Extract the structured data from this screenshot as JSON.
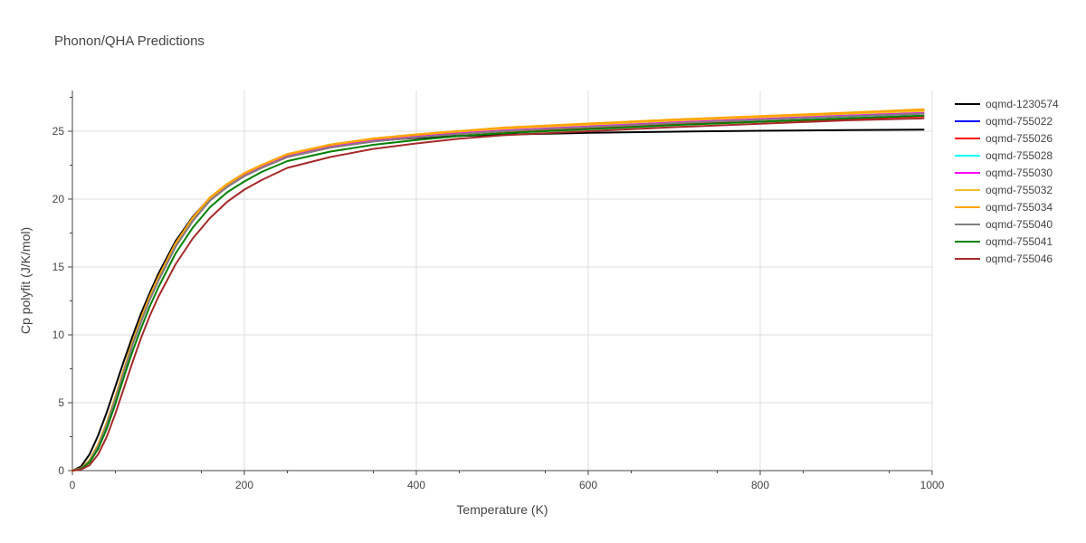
{
  "chart_data": {
    "type": "line",
    "title": "Phonon/QHA Predictions",
    "xlabel": "Temperature (K)",
    "ylabel": "Cp polyfit (J/K/mol)",
    "xlim": [
      0,
      1000
    ],
    "ylim": [
      0,
      28
    ],
    "x_ticks": [
      0,
      200,
      400,
      600,
      800,
      1000
    ],
    "y_ticks": [
      0,
      5,
      10,
      15,
      20,
      25
    ],
    "grid": true,
    "legend_position": "right",
    "x": [
      0,
      10,
      20,
      30,
      40,
      50,
      60,
      70,
      80,
      90,
      100,
      120,
      140,
      160,
      180,
      200,
      220,
      250,
      300,
      350,
      400,
      450,
      500,
      600,
      700,
      800,
      900,
      990
    ],
    "series": [
      {
        "name": "oqmd-1230574",
        "color": "#000000",
        "width": 2,
        "values": [
          0,
          0.3,
          1.2,
          2.6,
          4.3,
          6.2,
          8.1,
          9.9,
          11.6,
          13.1,
          14.5,
          16.9,
          18.7,
          20.1,
          21.1,
          21.9,
          22.5,
          23.2,
          23.9,
          24.3,
          24.5,
          24.65,
          24.75,
          24.88,
          24.97,
          25.03,
          25.08,
          25.12
        ]
      },
      {
        "name": "oqmd-755022",
        "color": "#0000ff",
        "width": 2,
        "values": [
          0,
          0.15,
          0.7,
          1.8,
          3.4,
          5.3,
          7.3,
          9.3,
          11.0,
          12.6,
          14.0,
          16.5,
          18.4,
          19.9,
          20.9,
          21.7,
          22.3,
          23.1,
          23.8,
          24.25,
          24.55,
          24.8,
          25.0,
          25.3,
          25.6,
          25.85,
          26.1,
          26.3
        ]
      },
      {
        "name": "oqmd-755026",
        "color": "#ff0000",
        "width": 2,
        "values": [
          0,
          0.15,
          0.7,
          1.8,
          3.4,
          5.3,
          7.3,
          9.3,
          11.0,
          12.6,
          14.0,
          16.5,
          18.4,
          19.9,
          20.9,
          21.7,
          22.3,
          23.1,
          23.8,
          24.25,
          24.55,
          24.8,
          24.98,
          25.25,
          25.5,
          25.7,
          25.9,
          26.1
        ]
      },
      {
        "name": "oqmd-755028",
        "color": "#00ffff",
        "width": 2,
        "values": [
          0,
          0.15,
          0.72,
          1.85,
          3.45,
          5.35,
          7.35,
          9.35,
          11.05,
          12.65,
          14.05,
          16.55,
          18.45,
          19.95,
          20.95,
          21.75,
          22.35,
          23.15,
          23.85,
          24.3,
          24.6,
          24.85,
          25.05,
          25.35,
          25.65,
          25.9,
          26.15,
          26.35
        ]
      },
      {
        "name": "oqmd-755030",
        "color": "#ff00ff",
        "width": 2,
        "values": [
          0,
          0.15,
          0.72,
          1.85,
          3.45,
          5.35,
          7.35,
          9.35,
          11.05,
          12.65,
          14.05,
          16.55,
          18.45,
          19.95,
          20.95,
          21.75,
          22.35,
          23.15,
          23.85,
          24.3,
          24.6,
          24.85,
          25.05,
          25.35,
          25.65,
          25.9,
          26.15,
          26.35
        ]
      },
      {
        "name": "oqmd-755032",
        "color": "#f0c030",
        "width": 2.5,
        "values": [
          0,
          0.15,
          0.75,
          1.9,
          3.5,
          5.4,
          7.45,
          9.45,
          11.2,
          12.8,
          14.2,
          16.7,
          18.6,
          20.1,
          21.1,
          21.9,
          22.5,
          23.3,
          24.0,
          24.45,
          24.75,
          25.0,
          25.2,
          25.5,
          25.8,
          26.05,
          26.3,
          26.5
        ]
      },
      {
        "name": "oqmd-755034",
        "color": "#ffa500",
        "width": 2.5,
        "values": [
          0,
          0.15,
          0.75,
          1.9,
          3.5,
          5.4,
          7.45,
          9.45,
          11.2,
          12.8,
          14.2,
          16.7,
          18.6,
          20.1,
          21.1,
          21.9,
          22.5,
          23.3,
          24.0,
          24.45,
          24.75,
          25.0,
          25.25,
          25.55,
          25.85,
          26.1,
          26.35,
          26.6
        ]
      },
      {
        "name": "oqmd-755040",
        "color": "#808080",
        "width": 2,
        "values": [
          0,
          0.15,
          0.7,
          1.8,
          3.4,
          5.3,
          7.3,
          9.3,
          11.0,
          12.6,
          14.0,
          16.5,
          18.4,
          19.9,
          20.9,
          21.7,
          22.3,
          23.1,
          23.8,
          24.25,
          24.55,
          24.8,
          25.0,
          25.3,
          25.6,
          25.85,
          26.1,
          26.3
        ]
      },
      {
        "name": "oqmd-755041",
        "color": "#008000",
        "width": 2,
        "values": [
          0,
          0.12,
          0.6,
          1.6,
          3.1,
          4.9,
          6.9,
          8.8,
          10.5,
          12.1,
          13.5,
          16.0,
          17.9,
          19.4,
          20.5,
          21.3,
          22.0,
          22.8,
          23.5,
          24.0,
          24.35,
          24.65,
          24.85,
          25.15,
          25.45,
          25.7,
          25.95,
          26.15
        ]
      },
      {
        "name": "oqmd-755046",
        "color": "#a52a2a",
        "width": 2,
        "values": [
          0,
          0.08,
          0.4,
          1.2,
          2.5,
          4.2,
          6.1,
          8.0,
          9.8,
          11.4,
          12.8,
          15.2,
          17.1,
          18.6,
          19.8,
          20.7,
          21.4,
          22.3,
          23.1,
          23.7,
          24.1,
          24.45,
          24.7,
          25.0,
          25.3,
          25.55,
          25.8,
          25.95
        ]
      }
    ]
  }
}
